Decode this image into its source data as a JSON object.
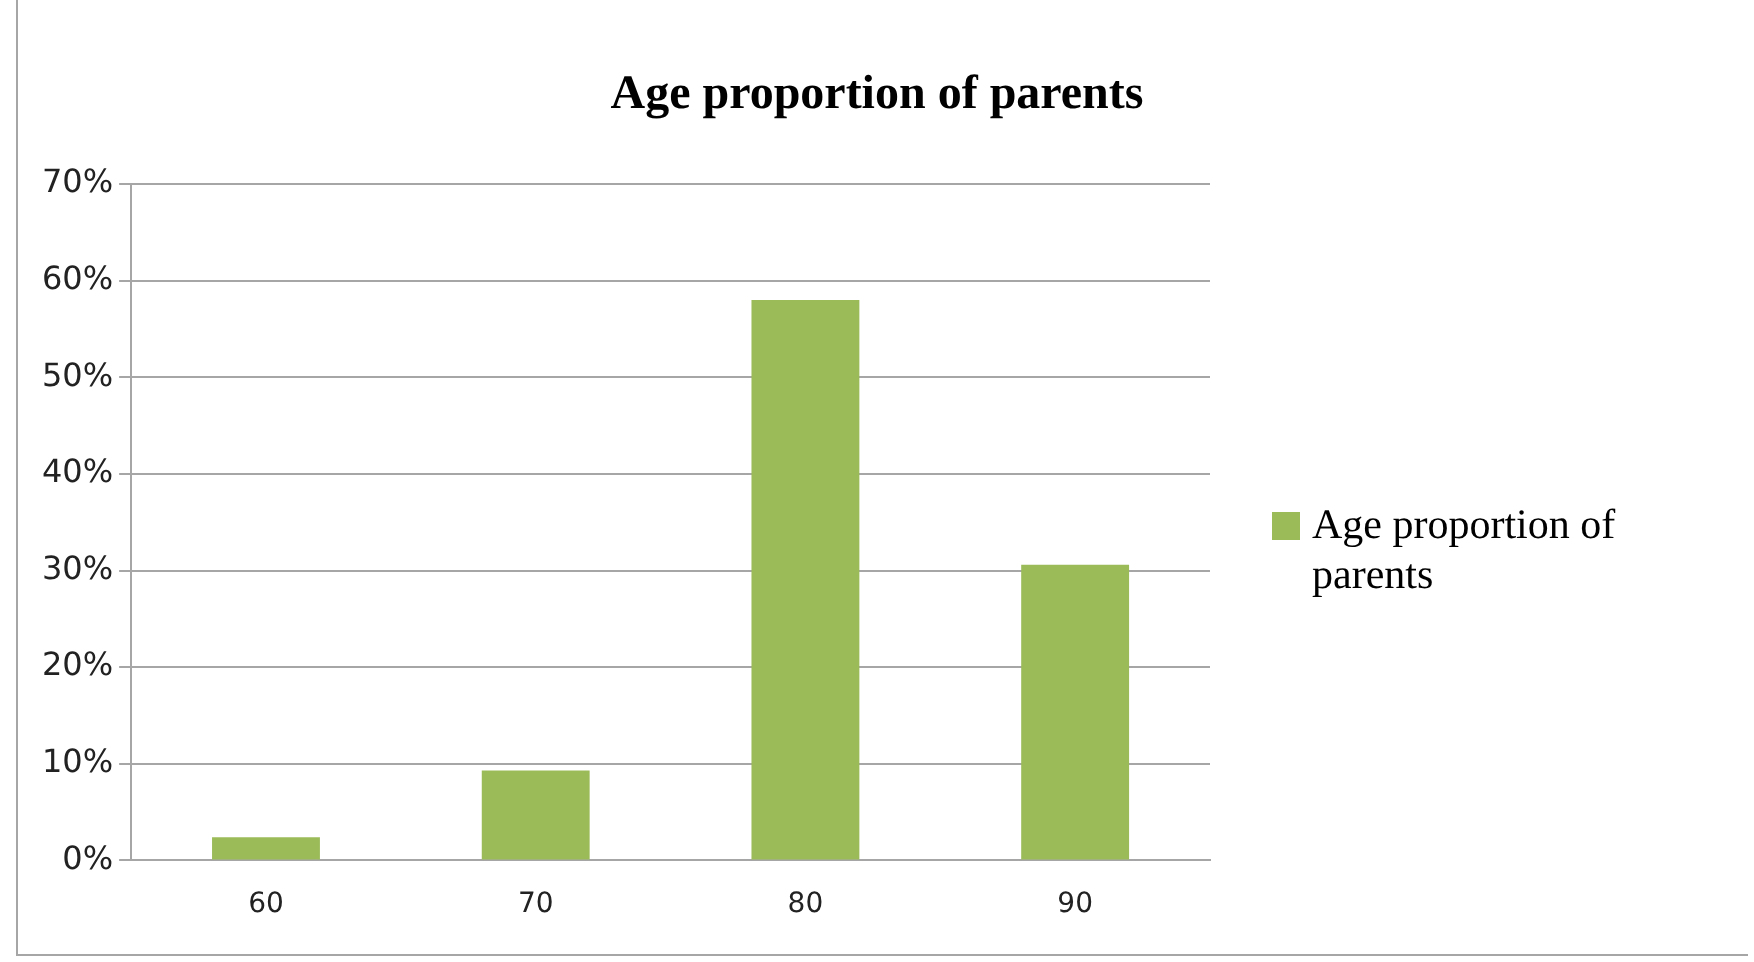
{
  "chart_data": {
    "type": "bar",
    "title": "Age proportion of parents",
    "categories": [
      "60",
      "70",
      "80",
      "90"
    ],
    "series": [
      {
        "name": "Age proportion of parents",
        "color": "#9bbb59",
        "values": [
          2.4,
          9.3,
          58.0,
          30.6
        ]
      }
    ],
    "ylim": [
      0,
      70
    ],
    "yticks": [
      {
        "value": 0,
        "label": "0%"
      },
      {
        "value": 10,
        "label": "10%"
      },
      {
        "value": 20,
        "label": "20%"
      },
      {
        "value": 30,
        "label": "30%"
      },
      {
        "value": 40,
        "label": "40%"
      },
      {
        "value": 50,
        "label": "50%"
      },
      {
        "value": 60,
        "label": "60%"
      },
      {
        "value": 70,
        "label": "70%"
      }
    ],
    "grid": "y",
    "legend": "right"
  }
}
